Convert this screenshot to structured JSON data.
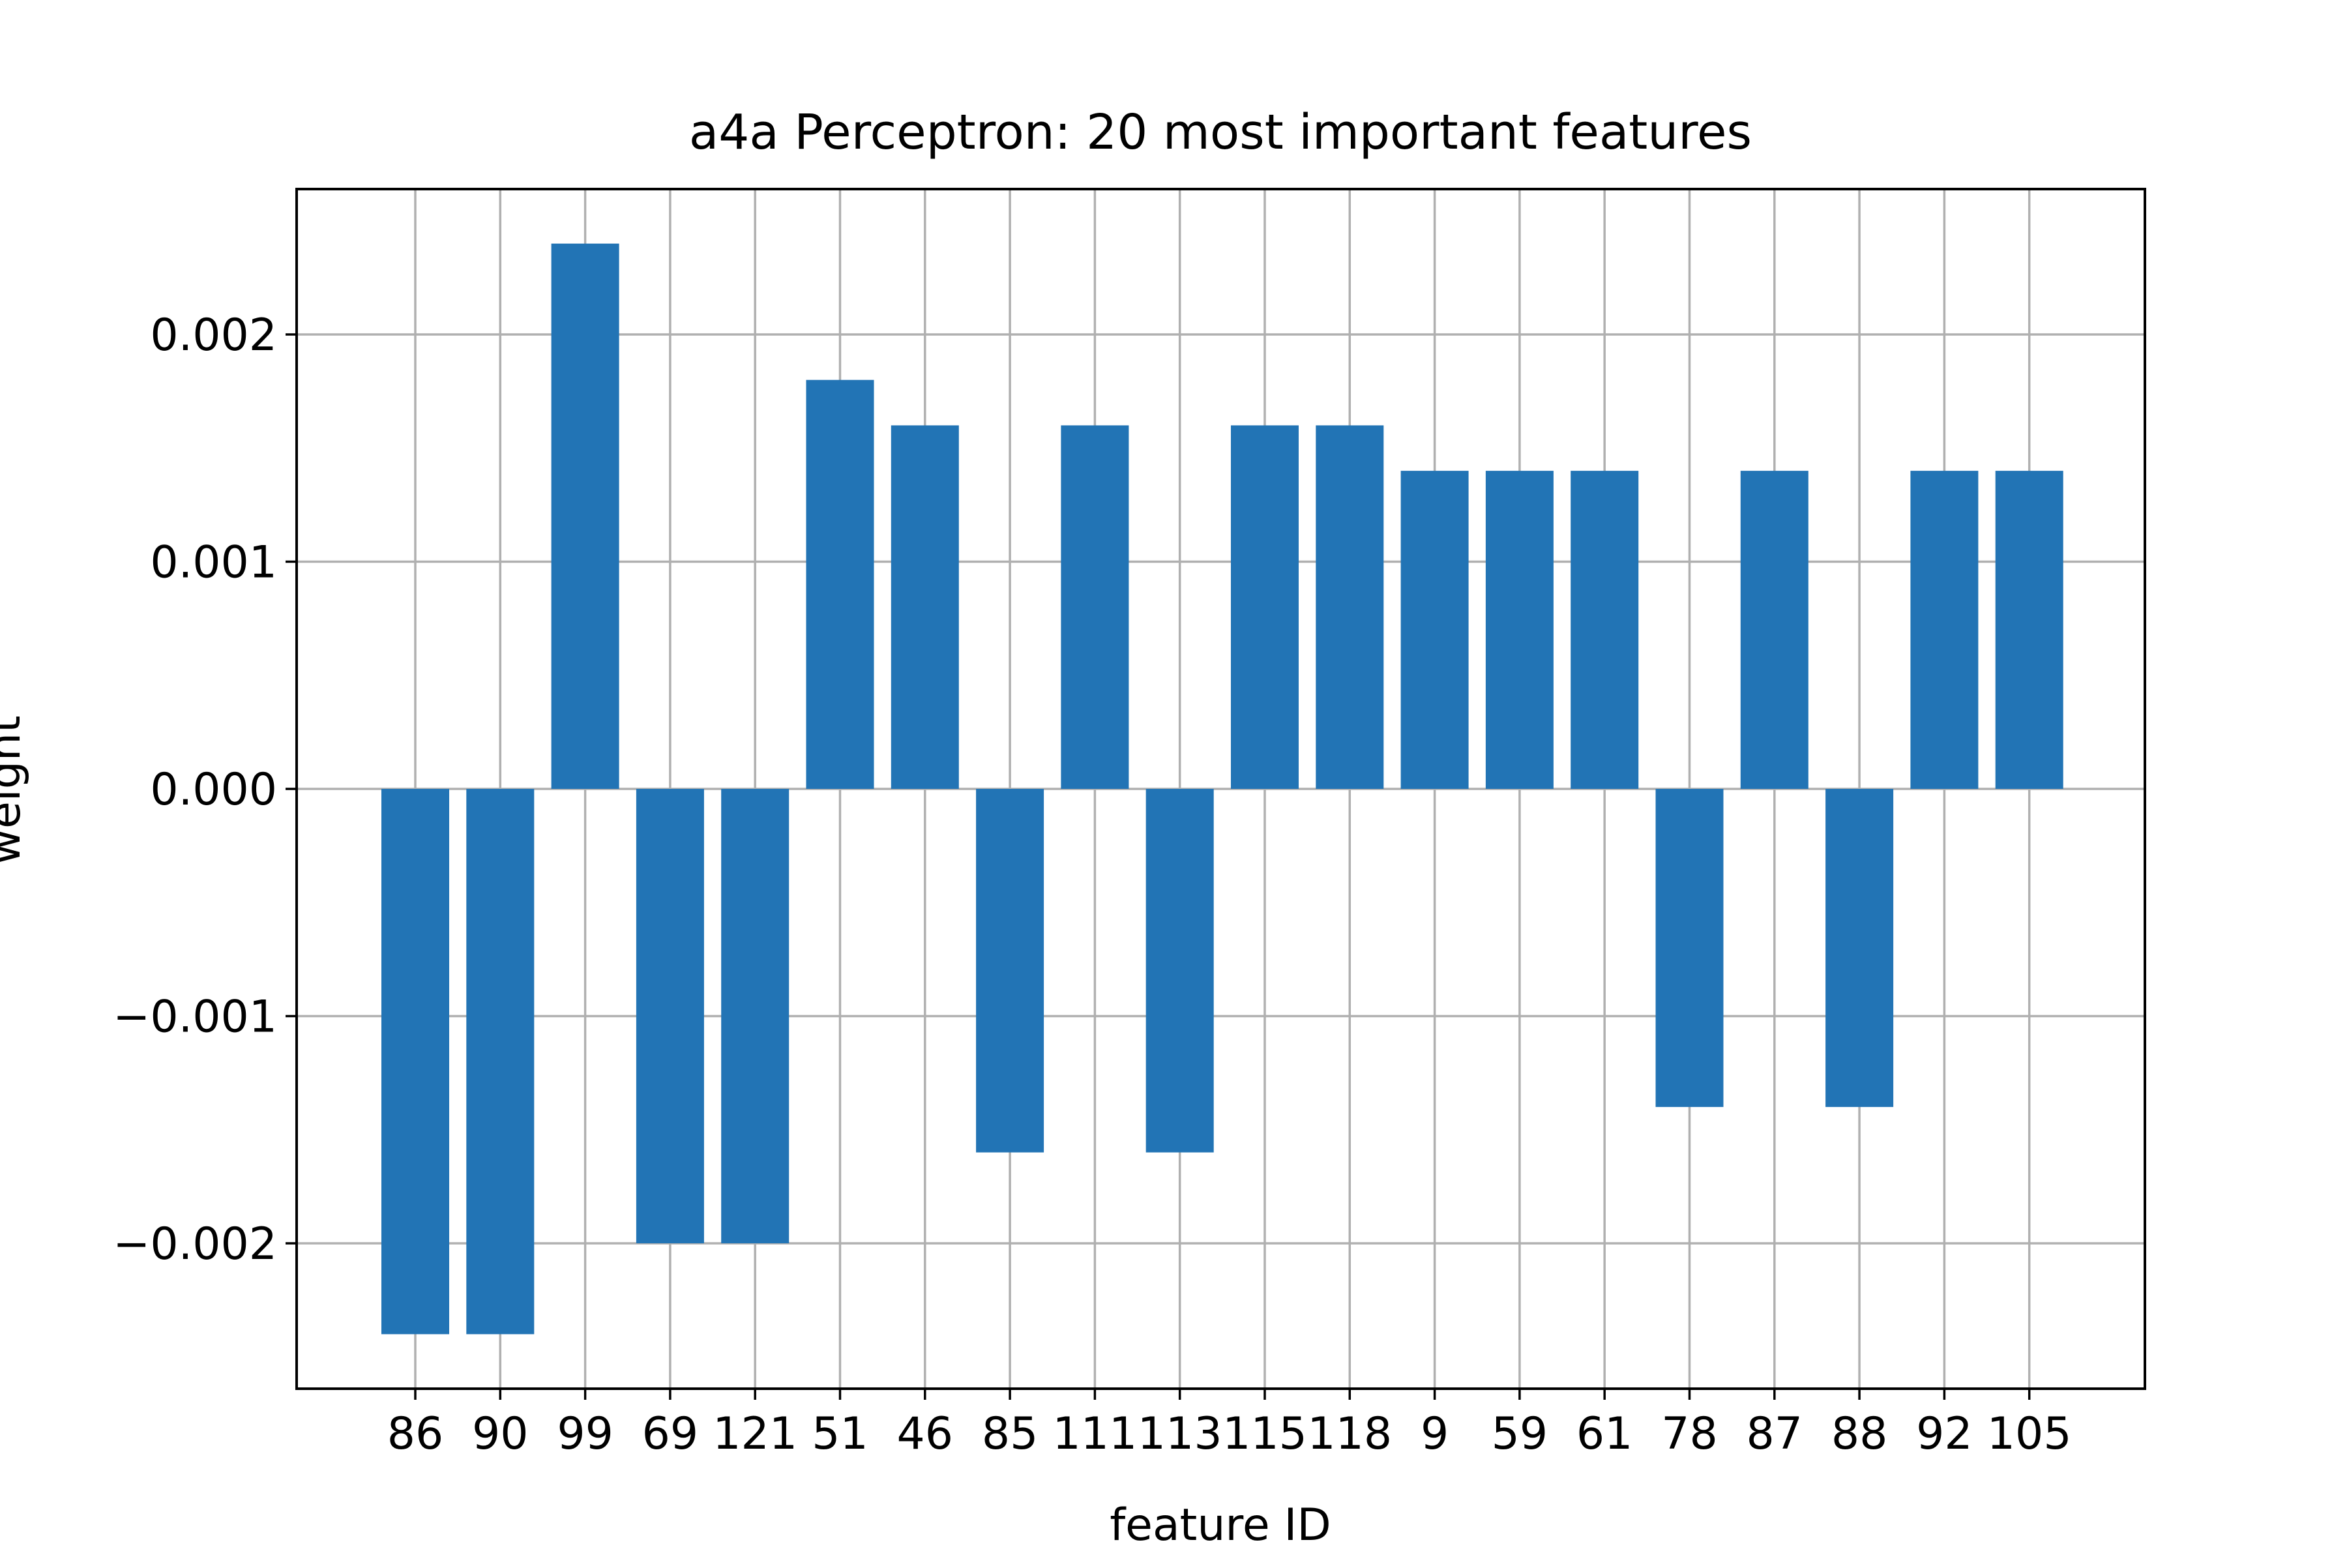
{
  "chart_data": {
    "type": "bar",
    "title": "a4a Perceptron: 20 most important features",
    "xlabel": "feature ID",
    "ylabel": "weight",
    "categories": [
      "86",
      "90",
      "99",
      "69",
      "121",
      "51",
      "46",
      "85",
      "111",
      "113",
      "115",
      "118",
      "9",
      "59",
      "61",
      "78",
      "87",
      "88",
      "92",
      "105"
    ],
    "values": [
      -0.0024,
      -0.0024,
      0.0024,
      -0.002,
      -0.002,
      0.0018,
      0.0016,
      -0.0016,
      0.0016,
      -0.0016,
      0.0016,
      0.0016,
      0.0014,
      0.0014,
      0.0014,
      -0.0014,
      0.0014,
      -0.0014,
      0.0014,
      0.0014
    ],
    "ylim": [
      -0.00264,
      0.00264
    ],
    "yticks": [
      -0.002,
      -0.001,
      0.0,
      0.001,
      0.002
    ],
    "ytick_labels": [
      "−0.002",
      "−0.001",
      "0.000",
      "0.001",
      "0.002"
    ],
    "grid": true,
    "colors": {
      "bar": "#2274b5",
      "grid": "#b0b0b0",
      "axes": "#000000"
    }
  }
}
